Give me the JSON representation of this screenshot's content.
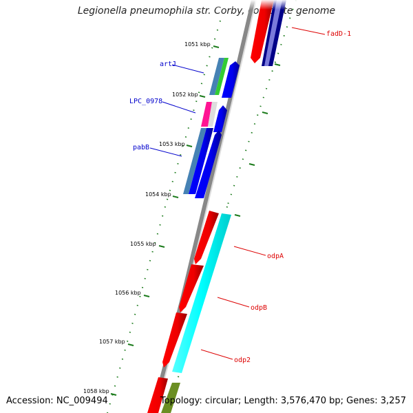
{
  "title": "Legionella pneumophila str. Corby, complete genome",
  "accession": "Accession: NC_009494",
  "summary": "Topology: circular; Length: 3,576,470 bp; Genes: 3,257",
  "ticks": [
    "1051 kbp",
    "1052 kbp",
    "1053 kbp",
    "1054 kbp",
    "1055 kbp",
    "1056 kbp",
    "1057 kbp",
    "1058 kbp"
  ],
  "gene_labels": [
    {
      "name": "fadD-1",
      "color": "#dd0000"
    },
    {
      "name": "artJ",
      "color": "#0000cc"
    },
    {
      "name": "LPC_0978",
      "color": "#0000cc"
    },
    {
      "name": "pabB",
      "color": "#0000cc"
    },
    {
      "name": "odpA",
      "color": "#dd0000"
    },
    {
      "name": "odpB",
      "color": "#dd0000"
    },
    {
      "name": "odp2",
      "color": "#dd0000"
    }
  ],
  "colors": {
    "backbone": "#888888",
    "forward_cds": "#ff0000",
    "reverse_cds": "#0000ff",
    "tick": "#1a7a1a"
  }
}
